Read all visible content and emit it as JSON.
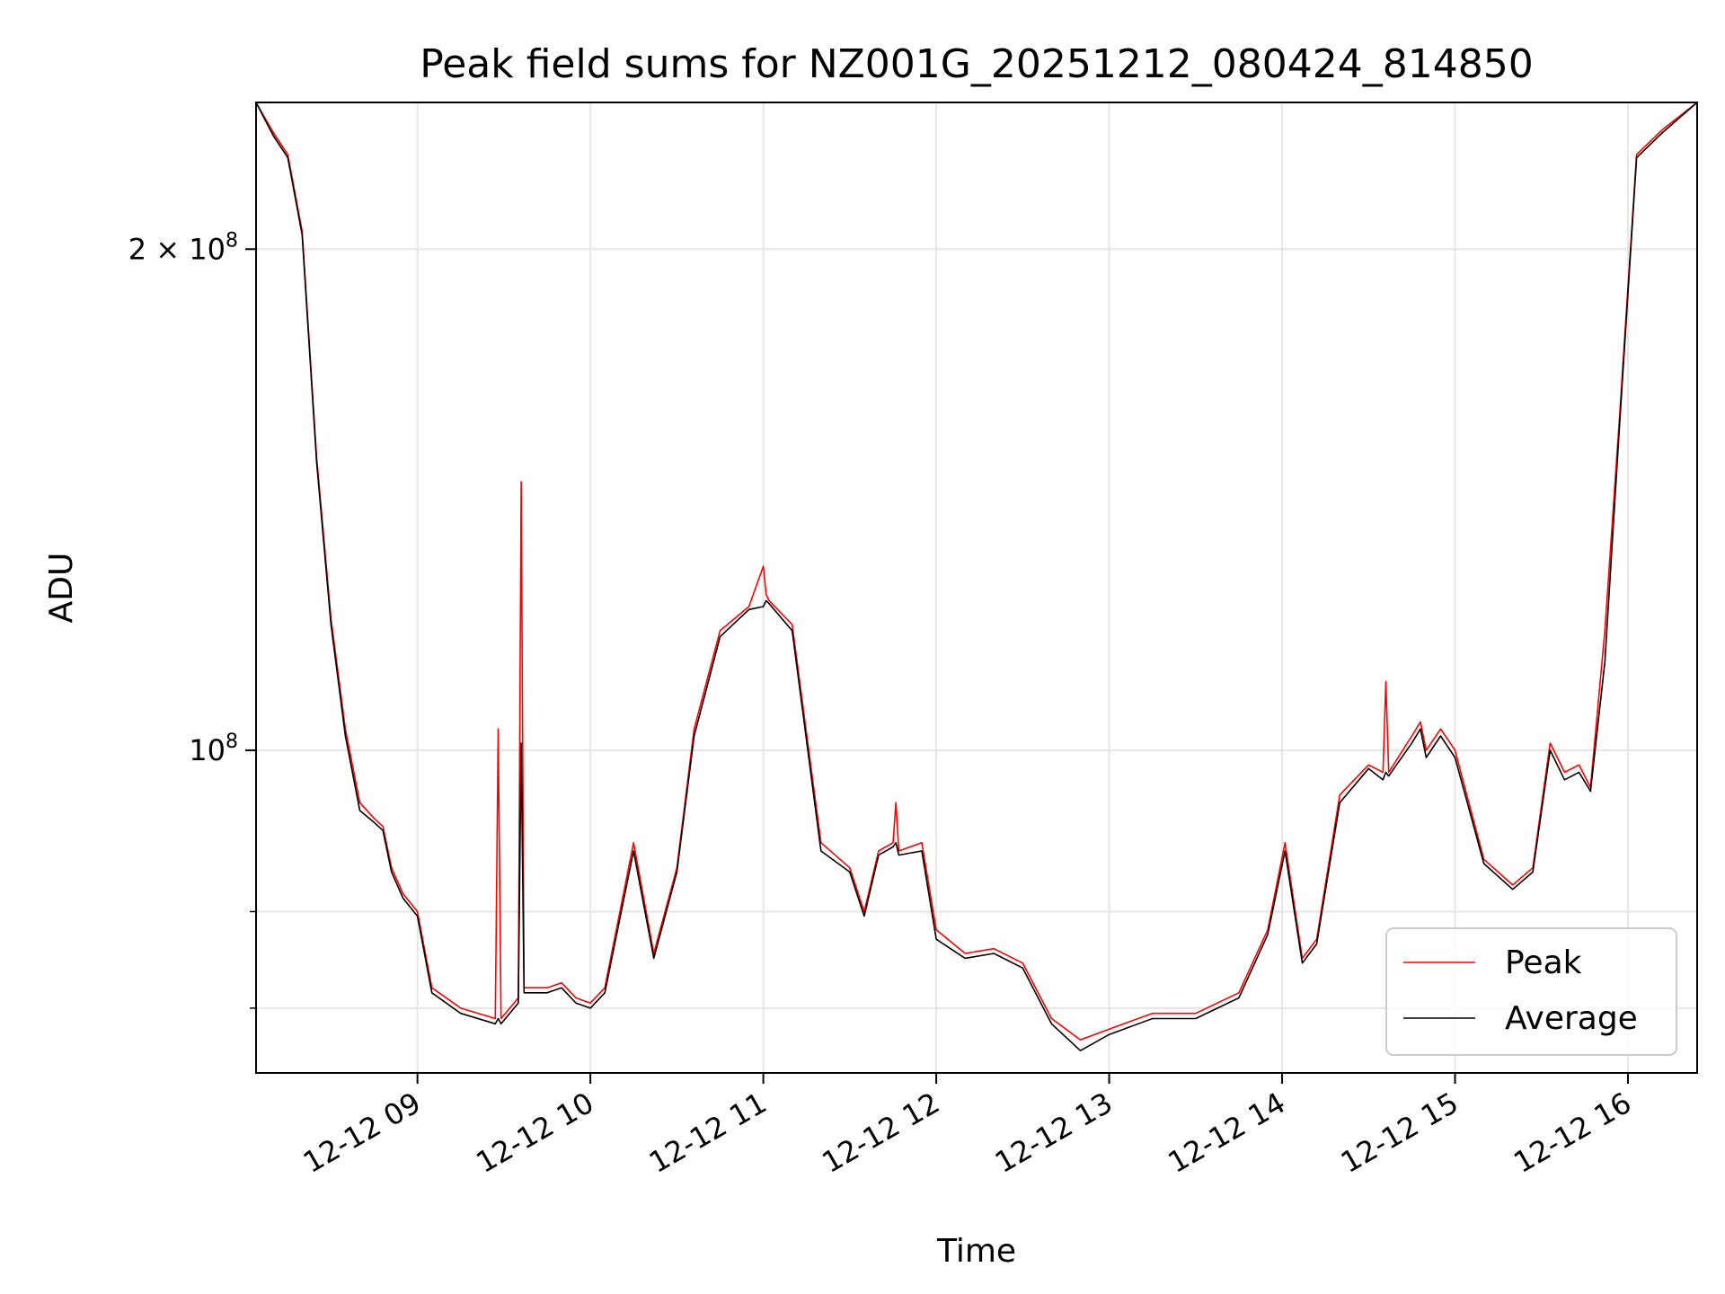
{
  "chart_data": {
    "type": "line",
    "title": "Peak field sums for NZ001G_20251212_080424_814850",
    "xlabel": "Time",
    "ylabel": "ADU",
    "yscale": "log",
    "xlim": [
      "12-12 08:04",
      "12-12 16:24"
    ],
    "ylim": [
      64000000,
      245000000
    ],
    "x_tick_labels": [
      "12-12 09",
      "12-12 10",
      "12-12 11",
      "12-12 12",
      "12-12 13",
      "12-12 14",
      "12-12 15",
      "12-12 16"
    ],
    "y_tick_labels": [
      {
        "value": 200000000,
        "mantissa": "2",
        "exponent": "8",
        "prefix": "2 × 10"
      },
      {
        "value": 100000000,
        "mantissa": "",
        "exponent": "8",
        "prefix": "10"
      }
    ],
    "grid": true,
    "legend": {
      "position": "lower right",
      "entries": [
        "Peak",
        "Average"
      ]
    },
    "series": [
      {
        "name": "Peak",
        "color": "#ff0000",
        "x": [
          "12-12 08:04",
          "12-12 08:10",
          "12-12 08:15",
          "12-12 08:20",
          "12-12 08:25",
          "12-12 08:30",
          "12-12 08:35",
          "12-12 08:40",
          "12-12 08:45",
          "12-12 08:48",
          "12-12 08:51",
          "12-12 08:55",
          "12-12 09:00",
          "12-12 09:05",
          "12-12 09:15",
          "12-12 09:27",
          "12-12 09:28",
          "12-12 09:29",
          "12-12 09:35",
          "12-12 09:36",
          "12-12 09:37",
          "12-12 09:45",
          "12-12 09:50",
          "12-12 09:55",
          "12-12 10:00",
          "12-12 10:05",
          "12-12 10:15",
          "12-12 10:22",
          "12-12 10:30",
          "12-12 10:36",
          "12-12 10:45",
          "12-12 10:55",
          "12-12 11:00",
          "12-12 11:01",
          "12-12 11:02",
          "12-12 11:10",
          "12-12 11:20",
          "12-12 11:30",
          "12-12 11:35",
          "12-12 11:40",
          "12-12 11:45",
          "12-12 11:46",
          "12-12 11:47",
          "12-12 11:55",
          "12-12 12:00",
          "12-12 12:10",
          "12-12 12:20",
          "12-12 12:30",
          "12-12 12:40",
          "12-12 12:50",
          "12-12 13:00",
          "12-12 13:15",
          "12-12 13:30",
          "12-12 13:45",
          "12-12 13:55",
          "12-12 14:01",
          "12-12 14:07",
          "12-12 14:12",
          "12-12 14:20",
          "12-12 14:30",
          "12-12 14:35",
          "12-12 14:36",
          "12-12 14:37",
          "12-12 14:45",
          "12-12 14:48",
          "12-12 14:50",
          "12-12 14:55",
          "12-12 15:00",
          "12-12 15:10",
          "12-12 15:20",
          "12-12 15:27",
          "12-12 15:33",
          "12-12 15:38",
          "12-12 15:43",
          "12-12 15:47",
          "12-12 15:52",
          "12-12 15:57",
          "12-12 16:03",
          "12-12 16:12",
          "12-12 16:24"
        ],
        "values": [
          245000000,
          235000000,
          228000000,
          205000000,
          150000000,
          120000000,
          103000000,
          93000000,
          91000000,
          90000000,
          85000000,
          82000000,
          80000000,
          72000000,
          70000000,
          69000000,
          103000000,
          69000000,
          71000000,
          145000000,
          72000000,
          72000000,
          72500000,
          71000000,
          70500000,
          72000000,
          88000000,
          75500000,
          85000000,
          103000000,
          118000000,
          122000000,
          129000000,
          124000000,
          123000000,
          119000000,
          88000000,
          85000000,
          80000000,
          87000000,
          88000000,
          93000000,
          87000000,
          88000000,
          78000000,
          75500000,
          76000000,
          74500000,
          69000000,
          67000000,
          68000000,
          69500000,
          69500000,
          71500000,
          78000000,
          88000000,
          75000000,
          77000000,
          94000000,
          98000000,
          97000000,
          110000000,
          97000000,
          102000000,
          104000000,
          100000000,
          103000000,
          100000000,
          86000000,
          83000000,
          85000000,
          101000000,
          97000000,
          98000000,
          95000000,
          118000000,
          158000000,
          228000000,
          236000000,
          245000000
        ]
      },
      {
        "name": "Average",
        "color": "#000000",
        "x": [
          "12-12 08:04",
          "12-12 08:10",
          "12-12 08:15",
          "12-12 08:20",
          "12-12 08:25",
          "12-12 08:30",
          "12-12 08:35",
          "12-12 08:40",
          "12-12 08:45",
          "12-12 08:48",
          "12-12 08:51",
          "12-12 08:55",
          "12-12 09:00",
          "12-12 09:05",
          "12-12 09:15",
          "12-12 09:27",
          "12-12 09:28",
          "12-12 09:29",
          "12-12 09:35",
          "12-12 09:36",
          "12-12 09:37",
          "12-12 09:45",
          "12-12 09:50",
          "12-12 09:55",
          "12-12 10:00",
          "12-12 10:05",
          "12-12 10:15",
          "12-12 10:22",
          "12-12 10:30",
          "12-12 10:36",
          "12-12 10:45",
          "12-12 10:55",
          "12-12 11:00",
          "12-12 11:01",
          "12-12 11:02",
          "12-12 11:10",
          "12-12 11:20",
          "12-12 11:30",
          "12-12 11:35",
          "12-12 11:40",
          "12-12 11:45",
          "12-12 11:46",
          "12-12 11:47",
          "12-12 11:55",
          "12-12 12:00",
          "12-12 12:10",
          "12-12 12:20",
          "12-12 12:30",
          "12-12 12:40",
          "12-12 12:50",
          "12-12 13:00",
          "12-12 13:15",
          "12-12 13:30",
          "12-12 13:45",
          "12-12 13:55",
          "12-12 14:01",
          "12-12 14:07",
          "12-12 14:12",
          "12-12 14:20",
          "12-12 14:30",
          "12-12 14:35",
          "12-12 14:36",
          "12-12 14:37",
          "12-12 14:45",
          "12-12 14:48",
          "12-12 14:50",
          "12-12 14:55",
          "12-12 15:00",
          "12-12 15:10",
          "12-12 15:20",
          "12-12 15:27",
          "12-12 15:33",
          "12-12 15:38",
          "12-12 15:43",
          "12-12 15:47",
          "12-12 15:52",
          "12-12 15:57",
          "12-12 16:03",
          "12-12 16:12",
          "12-12 16:24"
        ],
        "values": [
          245000000,
          234000000,
          227000000,
          204000000,
          149000000,
          119000000,
          102000000,
          92000000,
          90500000,
          89500000,
          84500000,
          81500000,
          79500000,
          71500000,
          69500000,
          68500000,
          69000000,
          68500000,
          70500000,
          101000000,
          71500000,
          71500000,
          72000000,
          70500000,
          70000000,
          71500000,
          87000000,
          75000000,
          84500000,
          102000000,
          117000000,
          121500000,
          122000000,
          123000000,
          122500000,
          118000000,
          87000000,
          84500000,
          79500000,
          86500000,
          87500000,
          88000000,
          86500000,
          87000000,
          77000000,
          75000000,
          75500000,
          74000000,
          68500000,
          66000000,
          67500000,
          69000000,
          69000000,
          71000000,
          77500000,
          87000000,
          74500000,
          76500000,
          93000000,
          97500000,
          96000000,
          97000000,
          96500000,
          101000000,
          103000000,
          99000000,
          102000000,
          99000000,
          85500000,
          82500000,
          84500000,
          100000000,
          96000000,
          97000000,
          94500000,
          113000000,
          156000000,
          227000000,
          235000000,
          245000000
        ]
      }
    ]
  }
}
